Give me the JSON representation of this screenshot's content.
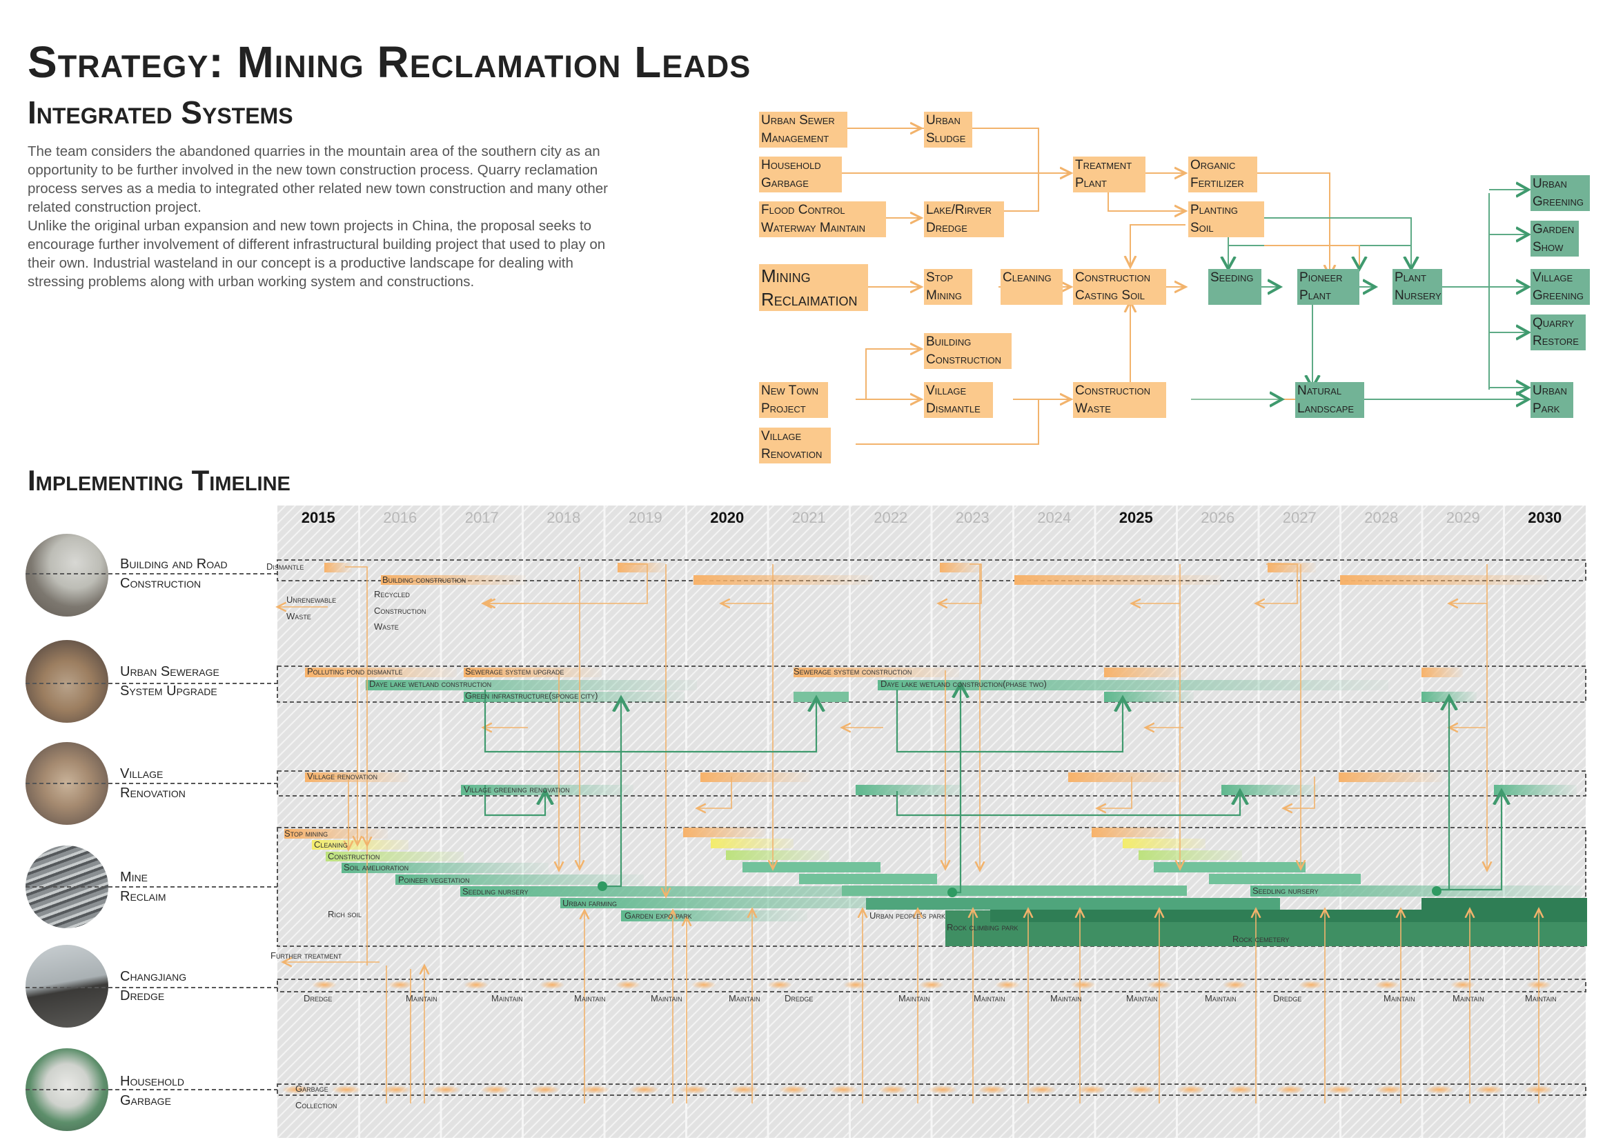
{
  "title": "Strategy: Mining Reclamation Leads",
  "subtitle": "Integrated Systems",
  "intro": [
    "The team considers the abandoned quarries in the mountain area of the southern city as an opportunity to be further involved in the new town construction process. Quarry reclamation process serves as a media to integrated other related new town construction and many other related construction project.",
    "Unlike the original urban expansion and new town projects in China, the proposal seeks to encourage further involvement of different infrastructural building project that used to play on their own. Industrial wasteland in our concept is a productive landscape for dealing with stressing problems along with urban working system and constructions."
  ],
  "colors": {
    "orange": "#fbc98c",
    "orange_line": "#f2b36c",
    "green": "#72b396",
    "green_line": "#3f9a6e",
    "dark_green": "#2f8a5c",
    "hatch_bg": "#e4e4e4"
  },
  "flow": {
    "nodes": [
      {
        "id": "urban_sewer",
        "label": [
          "Urban Sewer",
          "Management"
        ],
        "color": "o"
      },
      {
        "id": "household_garbage",
        "label": [
          "Household",
          "Garbage"
        ],
        "color": "o"
      },
      {
        "id": "flood_control",
        "label": [
          "Flood Control",
          "Waterway Maintain"
        ],
        "color": "o"
      },
      {
        "id": "urban_sludge",
        "label": [
          "Urban",
          "Sludge"
        ],
        "color": "o"
      },
      {
        "id": "lake_dredge",
        "label": [
          "Lake/Rirver",
          "Dredge"
        ],
        "color": "o"
      },
      {
        "id": "treatment",
        "label": [
          "Treatment",
          "Plant"
        ],
        "color": "o"
      },
      {
        "id": "organic",
        "label": [
          "Organic",
          "Fertilizer"
        ],
        "color": "o"
      },
      {
        "id": "planting_soil",
        "label": [
          "Planting",
          "Soil"
        ],
        "color": "o"
      },
      {
        "id": "mining",
        "label": [
          "Mining",
          "Reclaimation"
        ],
        "color": "o"
      },
      {
        "id": "stop_mining",
        "label": [
          "Stop",
          "Mining"
        ],
        "color": "o"
      },
      {
        "id": "cleaning",
        "label": [
          "Cleaning"
        ],
        "color": "o"
      },
      {
        "id": "casting_soil",
        "label": [
          "Construction",
          "Casting Soil"
        ],
        "color": "o"
      },
      {
        "id": "seeding",
        "label": [
          "Seeding"
        ],
        "color": "g"
      },
      {
        "id": "pioneer",
        "label": [
          "Pioneer",
          "Plant"
        ],
        "color": "g"
      },
      {
        "id": "nursery",
        "label": [
          "Plant",
          "Nursery"
        ],
        "color": "g"
      },
      {
        "id": "building",
        "label": [
          "Building",
          "Construction"
        ],
        "color": "o"
      },
      {
        "id": "new_town",
        "label": [
          "New Town",
          "Project"
        ],
        "color": "o"
      },
      {
        "id": "village_dismantle",
        "label": [
          "Village",
          "Dismantle"
        ],
        "color": "o"
      },
      {
        "id": "village_renovation",
        "label": [
          "Village",
          "Renovation"
        ],
        "color": "o"
      },
      {
        "id": "construction_waste",
        "label": [
          "Construction",
          "Waste"
        ],
        "color": "o"
      },
      {
        "id": "natural_landscape",
        "label": [
          "Natural",
          "Landscape"
        ],
        "color": "g"
      },
      {
        "id": "urban_greening",
        "label": [
          "Urban",
          "Greening"
        ],
        "color": "g"
      },
      {
        "id": "garden_show",
        "label": [
          "Garden",
          "Show"
        ],
        "color": "g"
      },
      {
        "id": "village_greening",
        "label": [
          "Village",
          "Greening"
        ],
        "color": "g"
      },
      {
        "id": "quarry_restore",
        "label": [
          "Quarry",
          "Restore"
        ],
        "color": "g"
      },
      {
        "id": "urban_park",
        "label": [
          "Urban",
          "Park"
        ],
        "color": "g"
      }
    ]
  },
  "timeline": {
    "title": "Implementing Timeline",
    "years": [
      "2015",
      "2016",
      "2017",
      "2018",
      "2019",
      "2020",
      "2021",
      "2022",
      "2023",
      "2024",
      "2025",
      "2026",
      "2027",
      "2028",
      "2029",
      "2030"
    ],
    "major_years": [
      "2015",
      "2020",
      "2025",
      "2030"
    ],
    "rows": [
      {
        "id": "building",
        "label": [
          "Building and Road",
          "Construction"
        ],
        "texts": [
          "Dismantle",
          "Building construction",
          "Unrenewable",
          "Waste",
          "Recycled",
          "Construction",
          "Waste"
        ]
      },
      {
        "id": "sewerage",
        "label": [
          "Urban Sewerage",
          "System Upgrade"
        ],
        "texts": [
          "Polluting pond dismantle",
          "Sewerage system upgrade",
          "Daye lake wetland construction",
          "Green infrastructure(sponge city)",
          "Sewerage system construction",
          "Daye lake wetland construction(phase two)"
        ]
      },
      {
        "id": "village",
        "label": [
          "Village",
          "Renovation"
        ],
        "texts": [
          "Village renovation",
          "Village greening renovation"
        ]
      },
      {
        "id": "mine",
        "label": [
          "Mine",
          "Reclaim"
        ],
        "texts": [
          "Stop mining",
          "Cleaning",
          "Construction",
          "Soil amelioration",
          "Poineer vegetation",
          "Seedling nursery",
          "Urban farming",
          "Garden expo park",
          "Urban people's park",
          "Rock climbing park",
          "Seedling nursery",
          "Rock cemetery",
          "Rich soil"
        ]
      },
      {
        "id": "dredge",
        "label": [
          "Changjiang",
          "Dredge"
        ],
        "texts": [
          "Further treatment",
          "Dredge",
          "Maintain",
          "Maintain",
          "Maintain",
          "Maintain",
          "Maintain",
          "Dredge",
          "Maintain",
          "Maintain",
          "Maintain",
          "Maintain",
          "Maintain",
          "Dredge",
          "Maintain",
          "Maintain",
          "Maintain"
        ]
      },
      {
        "id": "garbage",
        "label": [
          "Household",
          "Garbage"
        ],
        "texts": [
          "Garbage",
          "Collection"
        ]
      }
    ]
  }
}
